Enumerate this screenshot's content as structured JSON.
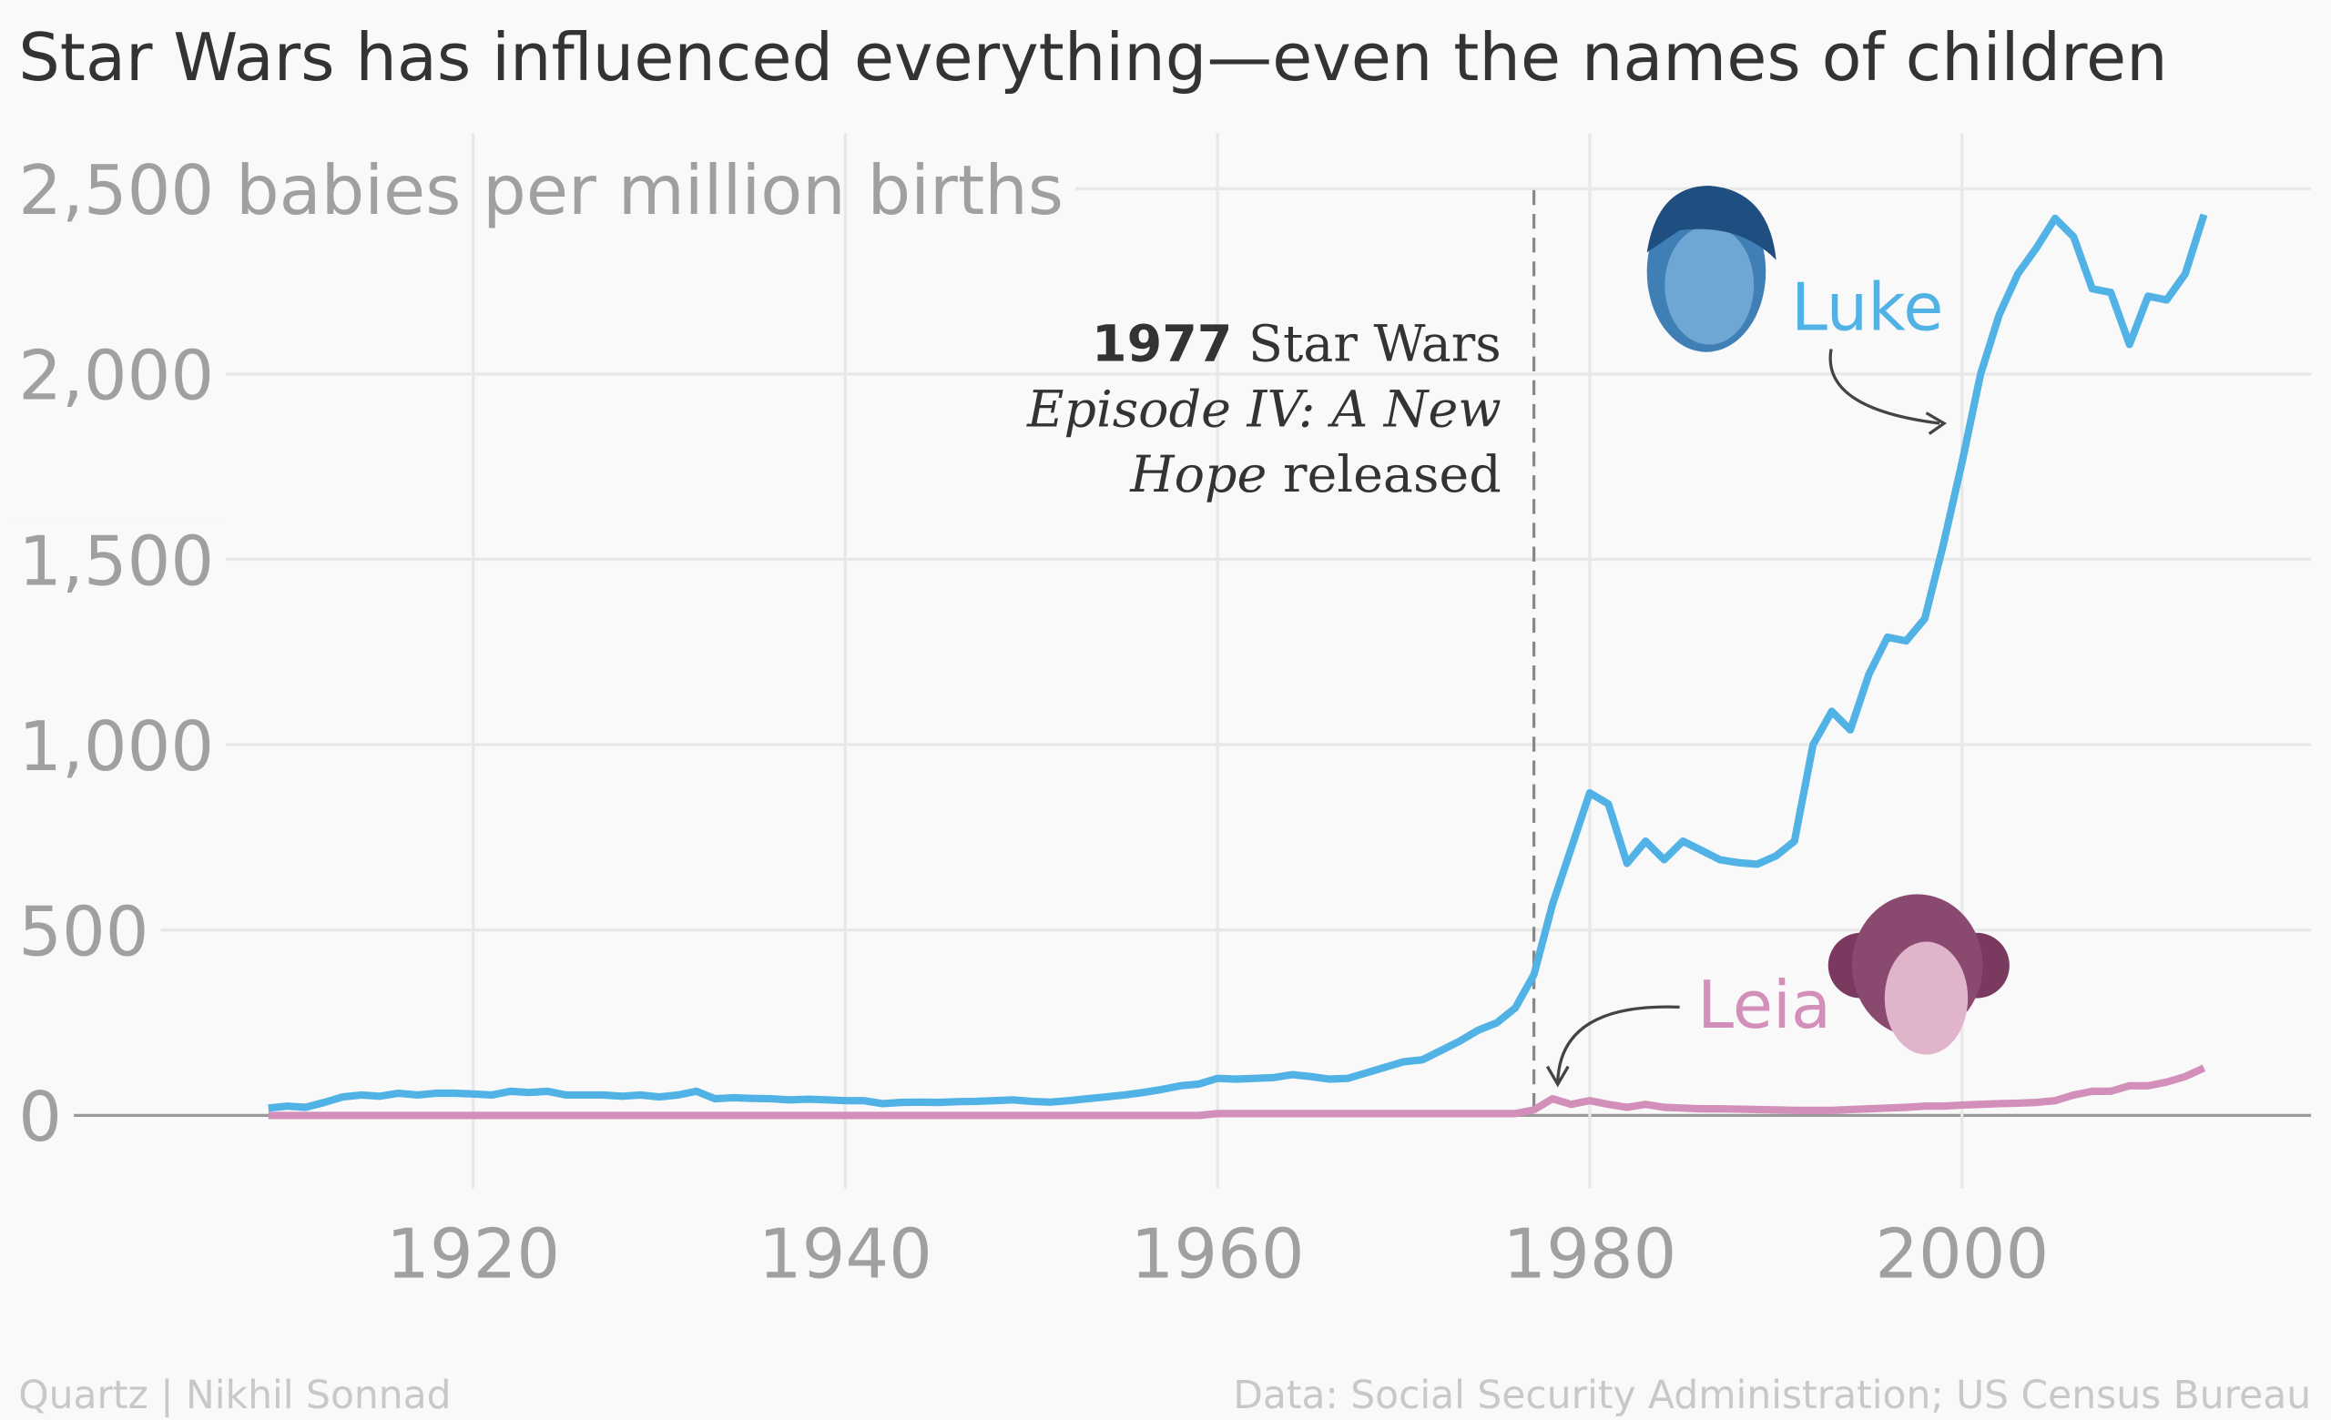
{
  "chart_data": {
    "type": "line",
    "title": "Star Wars has influenced everything—even the names of children",
    "annotation": {
      "year": "1977",
      "text": " Star Wars",
      "line2": "Episode IV: A New",
      "line3_italic": "Hope",
      "line3": " released",
      "x": 1977
    },
    "source_left": "Quartz | Nikhil Sonnad",
    "source_right": "Data: Social Security Administration; US Census Bureau",
    "x": [
      1909,
      1910,
      1911,
      1912,
      1913,
      1914,
      1915,
      1916,
      1917,
      1918,
      1919,
      1920,
      1921,
      1922,
      1923,
      1924,
      1925,
      1926,
      1927,
      1928,
      1929,
      1930,
      1931,
      1932,
      1933,
      1934,
      1935,
      1936,
      1937,
      1938,
      1939,
      1940,
      1941,
      1942,
      1943,
      1944,
      1945,
      1946,
      1947,
      1948,
      1949,
      1950,
      1951,
      1952,
      1953,
      1954,
      1955,
      1956,
      1957,
      1958,
      1959,
      1960,
      1961,
      1962,
      1963,
      1964,
      1965,
      1966,
      1967,
      1968,
      1969,
      1970,
      1971,
      1972,
      1973,
      1974,
      1975,
      1976,
      1977,
      1978,
      1979,
      1980,
      1981,
      1982,
      1983,
      1984,
      1985,
      1986,
      1987,
      1988,
      1989,
      1990,
      1991,
      1992,
      1993,
      1994,
      1995,
      1996,
      1997,
      1998,
      1999,
      2000,
      2001,
      2002,
      2003,
      2004,
      2005,
      2006,
      2007,
      2008,
      2009,
      2010,
      2011,
      2012,
      2013
    ],
    "series": [
      {
        "name": "Luke",
        "color": "#51b2e5",
        "values": [
          20,
          25,
          22,
          35,
          50,
          55,
          52,
          60,
          55,
          60,
          60,
          58,
          55,
          65,
          62,
          65,
          55,
          55,
          55,
          52,
          55,
          50,
          55,
          65,
          45,
          48,
          46,
          45,
          42,
          44,
          42,
          40,
          40,
          32,
          35,
          36,
          35,
          37,
          38,
          40,
          42,
          38,
          36,
          40,
          45,
          50,
          55,
          62,
          70,
          80,
          85,
          100,
          98,
          100,
          102,
          110,
          105,
          98,
          100,
          115,
          130,
          145,
          150,
          175,
          200,
          230,
          250,
          290,
          380,
          570,
          720,
          870,
          840,
          680,
          740,
          690,
          740,
          715,
          690,
          682,
          678,
          700,
          740,
          1000,
          1090,
          1040,
          1190,
          1290,
          1280,
          1340,
          1540,
          1760,
          2000,
          2160,
          2270,
          2340,
          2420,
          2370,
          2230,
          2220,
          2080,
          2210,
          2200,
          2270,
          2430
        ]
      },
      {
        "name": "Leia",
        "color": "#d28fba",
        "values": [
          0,
          0,
          0,
          0,
          0,
          0,
          0,
          0,
          0,
          0,
          0,
          0,
          0,
          0,
          0,
          0,
          0,
          0,
          0,
          0,
          0,
          0,
          0,
          0,
          0,
          0,
          0,
          0,
          0,
          0,
          0,
          0,
          0,
          0,
          0,
          0,
          0,
          0,
          0,
          0,
          0,
          0,
          0,
          0,
          0,
          0,
          0,
          0,
          0,
          0,
          0,
          5,
          5,
          5,
          5,
          5,
          5,
          5,
          5,
          5,
          5,
          5,
          5,
          5,
          5,
          5,
          5,
          5,
          15,
          45,
          30,
          40,
          30,
          22,
          30,
          22,
          20,
          18,
          18,
          17,
          16,
          15,
          14,
          14,
          14,
          16,
          18,
          20,
          22,
          25,
          25,
          28,
          30,
          32,
          33,
          35,
          40,
          55,
          65,
          65,
          80,
          80,
          90,
          105,
          128
        ]
      }
    ],
    "xlim": [
      1896,
      2018
    ],
    "xticks": [
      1920,
      1940,
      1960,
      1980,
      2000
    ],
    "ylim": [
      -150,
      2650
    ],
    "yticks": [
      0,
      500,
      {
        "value": 1000,
        "label": "1,000"
      },
      {
        "value": 1500,
        "label": "1,500"
      },
      {
        "value": 2000,
        "label": "2,000"
      },
      {
        "value": 2500,
        "label": "2,500 babies per million births"
      }
    ],
    "grid": true
  }
}
